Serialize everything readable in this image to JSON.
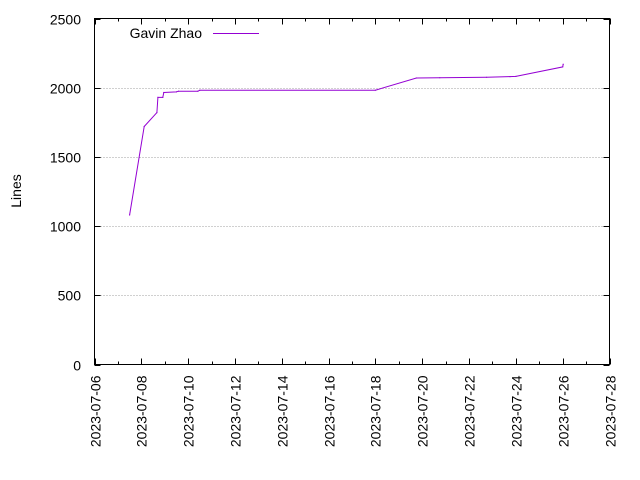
{
  "chart_data": {
    "type": "line",
    "title": "",
    "xlabel": "",
    "ylabel": "Lines",
    "x_axis_type": "date",
    "xlim": [
      "2023-07-06",
      "2023-07-28"
    ],
    "ylim": [
      0,
      2500
    ],
    "x_ticks": [
      "2023-07-06",
      "2023-07-08",
      "2023-07-10",
      "2023-07-12",
      "2023-07-14",
      "2023-07-16",
      "2023-07-18",
      "2023-07-20",
      "2023-07-22",
      "2023-07-24",
      "2023-07-26",
      "2023-07-28"
    ],
    "y_ticks": [
      0,
      500,
      1000,
      1500,
      2000,
      2500
    ],
    "grid": "horizontal dotted at y ticks",
    "legend_position": "top-left",
    "series": [
      {
        "name": "Gavin Zhao",
        "color": "#9400d3",
        "step": true,
        "points": [
          [
            "2023-07-07 12:00",
            1080
          ],
          [
            "2023-07-08 03:00",
            1720
          ],
          [
            "2023-07-08 16:00",
            1820
          ],
          [
            "2023-07-08 17:00",
            1930
          ],
          [
            "2023-07-08 22:00",
            1930
          ],
          [
            "2023-07-08 23:00",
            1965
          ],
          [
            "2023-07-09 12:00",
            1970
          ],
          [
            "2023-07-09 14:00",
            1975
          ],
          [
            "2023-07-10 10:00",
            1975
          ],
          [
            "2023-07-10 12:00",
            1982
          ],
          [
            "2023-07-18 00:00",
            1982
          ],
          [
            "2023-07-19 18:00",
            2070
          ],
          [
            "2023-07-20 18:00",
            2072
          ],
          [
            "2023-07-22 18:00",
            2075
          ],
          [
            "2023-07-23 18:00",
            2080
          ],
          [
            "2023-07-24 00:00",
            2082
          ],
          [
            "2023-07-26 00:00",
            2150
          ],
          [
            "2023-07-26 00:30",
            2170
          ]
        ]
      }
    ]
  }
}
